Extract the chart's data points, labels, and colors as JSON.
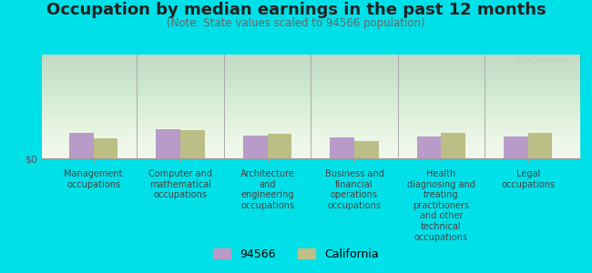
{
  "title": "Occupation by median earnings in the past 12 months",
  "subtitle": "(Note: State values scaled to 94566 population)",
  "categories": [
    "Management\noccupations",
    "Computer and\nmathematical\noccupations",
    "Architecture\nand\nengineering\noccupations",
    "Business and\nfinancial\noperations\noccupations",
    "Health\ndiagnosing and\ntreating\npractitioners\nand other\ntechnical\noccupations",
    "Legal\noccupations"
  ],
  "values_94566": [
    25,
    28,
    22,
    20,
    21,
    21
  ],
  "values_california": [
    19,
    27,
    24,
    17,
    25,
    25
  ],
  "color_94566": "#b89bc8",
  "color_california": "#bbbe85",
  "background_color": "#00e0e8",
  "ylabel": "$0",
  "legend_94566": "94566",
  "legend_california": "California",
  "ylim": [
    0,
    100
  ],
  "title_fontsize": 13,
  "subtitle_fontsize": 8.5,
  "label_fontsize": 7,
  "legend_fontsize": 9,
  "bar_width": 0.28
}
